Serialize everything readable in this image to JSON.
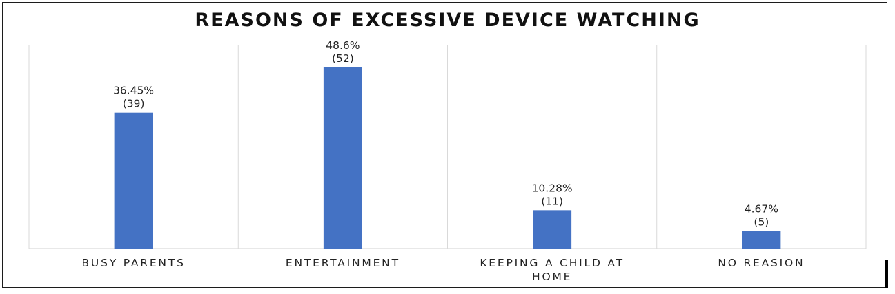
{
  "chart_data": {
    "type": "bar",
    "title": "REASONS OF  EXCESSIVE DEVICE WATCHING",
    "categories": [
      "BUSY PARENTS",
      "ENTERTAINMENT",
      "KEEPING A CHILD AT HOME",
      "NO REASION"
    ],
    "category_lines": [
      [
        "BUSY PARENTS"
      ],
      [
        "ENTERTAINMENT"
      ],
      [
        "KEEPING A CHILD AT",
        "HOME"
      ],
      [
        "NO REASION"
      ]
    ],
    "values": [
      36.45,
      48.6,
      10.28,
      4.67
    ],
    "counts": [
      39,
      52,
      11,
      5
    ],
    "data_labels": [
      [
        "36.45%",
        "(39)"
      ],
      [
        "48.6%",
        "(52)"
      ],
      [
        "10.28%",
        "(11)"
      ],
      [
        "4.67%",
        "(5)"
      ]
    ],
    "xlabel": "",
    "ylabel": "",
    "ylim": [
      0,
      54.5
    ],
    "grid": "vertical category separators",
    "legend": "none",
    "bar_color": "#4472c4"
  }
}
